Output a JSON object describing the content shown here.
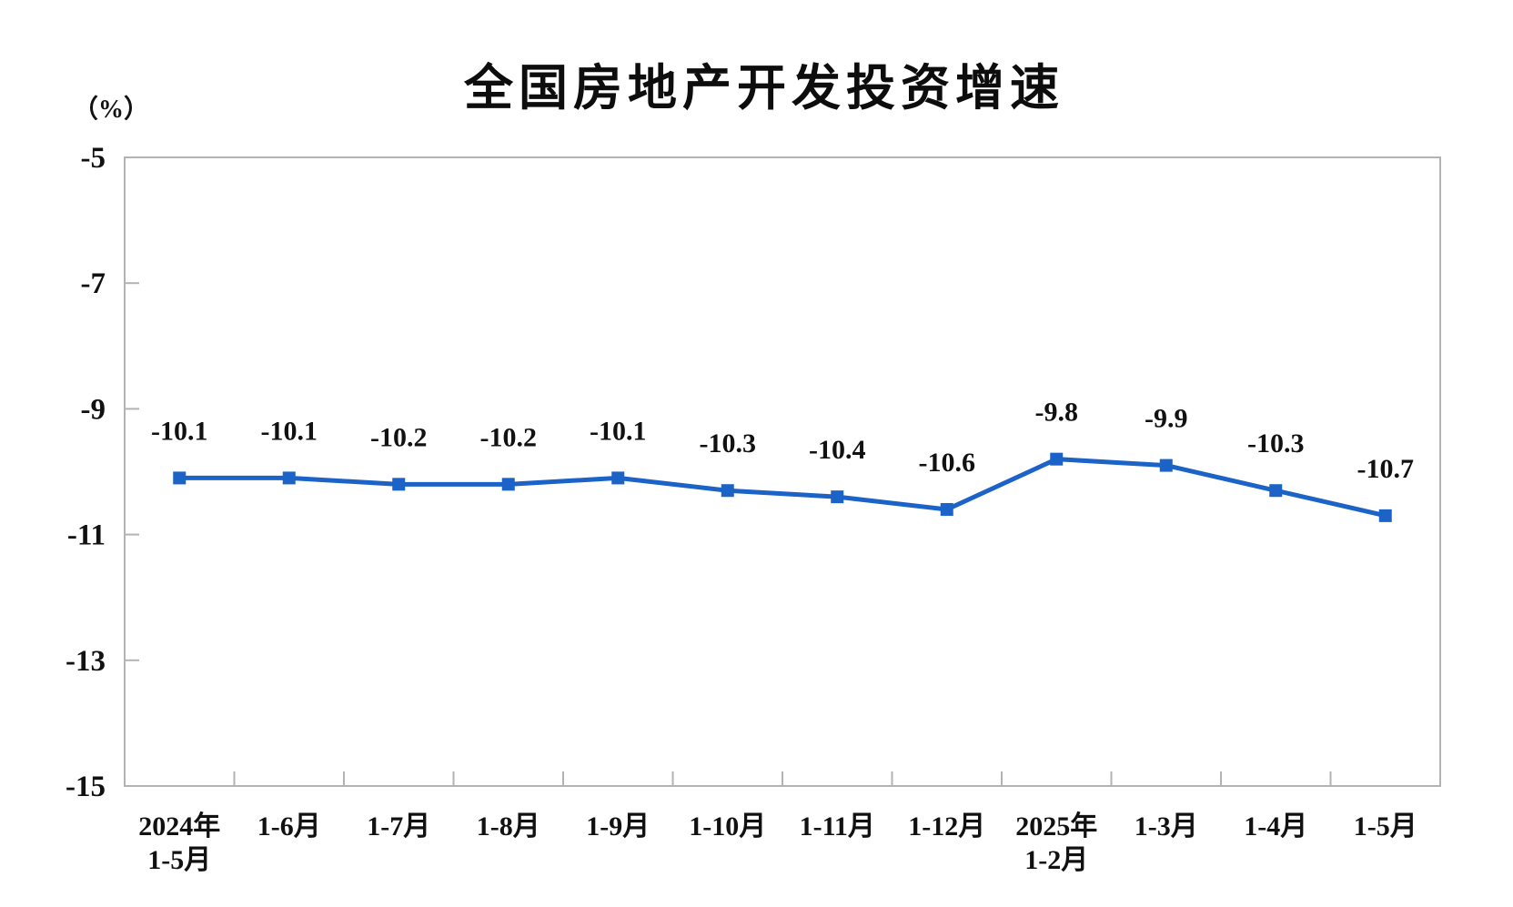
{
  "chart_data": {
    "type": "line",
    "title": "全国房地产开发投资增速",
    "unit_label": "（%）",
    "categories": [
      [
        "2024年",
        "1-5月"
      ],
      [
        "1-6月"
      ],
      [
        "1-7月"
      ],
      [
        "1-8月"
      ],
      [
        "1-9月"
      ],
      [
        "1-10月"
      ],
      [
        "1-11月"
      ],
      [
        "1-12月"
      ],
      [
        "2025年",
        "1-2月"
      ],
      [
        "1-3月"
      ],
      [
        "1-4月"
      ],
      [
        "1-5月"
      ]
    ],
    "values": [
      -10.1,
      -10.1,
      -10.2,
      -10.2,
      -10.1,
      -10.3,
      -10.4,
      -10.6,
      -9.8,
      -9.9,
      -10.3,
      -10.7
    ],
    "data_labels": [
      "-10.1",
      "-10.1",
      "-10.2",
      "-10.2",
      "-10.1",
      "-10.3",
      "-10.4",
      "-10.6",
      "-9.8",
      "-9.9",
      "-10.3",
      "-10.7"
    ],
    "ylim": [
      -15,
      -5
    ],
    "yticks": [
      -5,
      -7,
      -9,
      -11,
      -13,
      -15
    ],
    "grid": false,
    "legend": "none",
    "marker": "square",
    "line_color": "#1b63c7",
    "axis_color": "#b3b3b3",
    "text_color": "#111111",
    "background_color": "#ffffff"
  }
}
